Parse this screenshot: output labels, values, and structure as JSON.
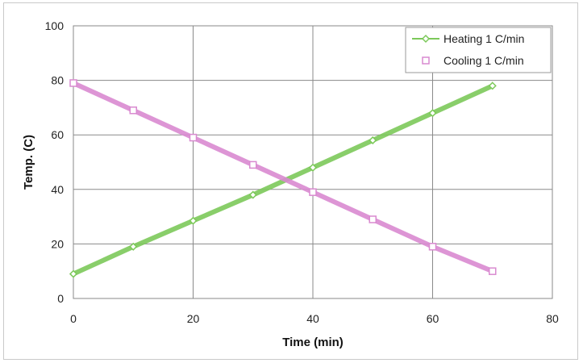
{
  "chart_data": {
    "type": "scatter",
    "title": "",
    "xlabel": "Time (min)",
    "ylabel": "Temp. (C)",
    "xlim": [
      0,
      80
    ],
    "ylim": [
      0,
      100
    ],
    "xticks": [
      0,
      20,
      40,
      60,
      80
    ],
    "yticks": [
      0,
      20,
      40,
      60,
      80,
      100
    ],
    "grid": true,
    "legend_position": "top-right",
    "series": [
      {
        "name": "Heating 1 C/min",
        "color": "#7cc95a",
        "marker": "diamond",
        "x": [
          0,
          10,
          20,
          30,
          40,
          50,
          60,
          70
        ],
        "y": [
          9,
          19,
          28.5,
          38,
          48,
          58,
          68,
          78
        ]
      },
      {
        "name": "Cooling 1 C/min",
        "color": "#d98ad0",
        "marker": "square",
        "x": [
          0,
          10,
          20,
          30,
          40,
          50,
          60,
          70
        ],
        "y": [
          79,
          69,
          59,
          49,
          39,
          29,
          19,
          10
        ]
      }
    ]
  }
}
